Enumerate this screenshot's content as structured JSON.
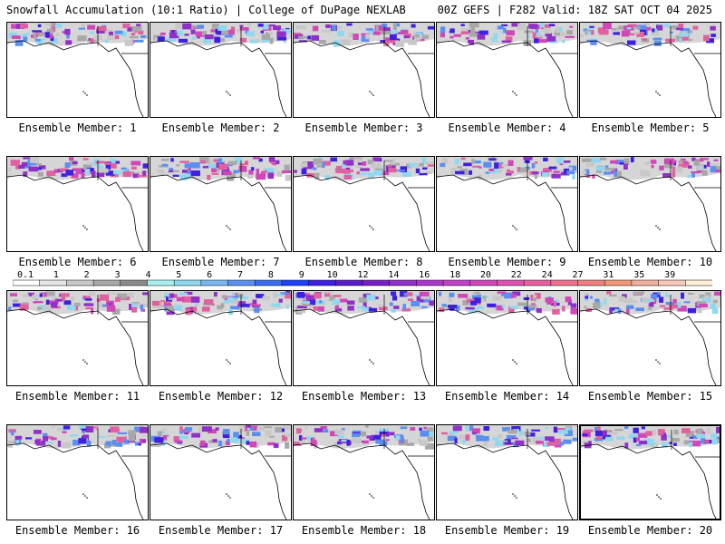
{
  "header": {
    "left": "Snowfall Accumulation (10:1 Ratio) | College of DuPage NEXLAB",
    "right": "00Z GEFS | F282 Valid: 18Z SAT OCT 04 2025"
  },
  "panel_prefix": "Ensemble Member:",
  "members": [
    {
      "num": "1"
    },
    {
      "num": "2"
    },
    {
      "num": "3"
    },
    {
      "num": "4"
    },
    {
      "num": "5"
    },
    {
      "num": "6"
    },
    {
      "num": "7"
    },
    {
      "num": "8"
    },
    {
      "num": "9"
    },
    {
      "num": "10"
    },
    {
      "num": "11"
    },
    {
      "num": "12"
    },
    {
      "num": "13"
    },
    {
      "num": "14"
    },
    {
      "num": "15"
    },
    {
      "num": "16"
    },
    {
      "num": "17"
    },
    {
      "num": "18"
    },
    {
      "num": "19"
    },
    {
      "num": "20"
    }
  ],
  "colorbar": {
    "labels": [
      "0.1",
      "1",
      "2",
      "3",
      "4",
      "5",
      "6",
      "7",
      "8",
      "9",
      "10",
      "12",
      "14",
      "16",
      "18",
      "20",
      "22",
      "24",
      "27",
      "31",
      "35",
      "39"
    ],
    "colors": [
      "#ffffff",
      "#e6e6e6",
      "#c8c8c8",
      "#a8a8a8",
      "#8a8a8a",
      "#a8f0f0",
      "#8fd8f0",
      "#78b8f0",
      "#5a8ff0",
      "#3c6cf0",
      "#1e40ff",
      "#4020e0",
      "#5a1ec8",
      "#7820c8",
      "#9030c8",
      "#a838c8",
      "#c040c8",
      "#d048b8",
      "#e050b0",
      "#e860a0",
      "#f07090",
      "#f08080",
      "#f09878",
      "#f0b0a0",
      "#f8c8b8",
      "#fff0d8"
    ]
  }
}
